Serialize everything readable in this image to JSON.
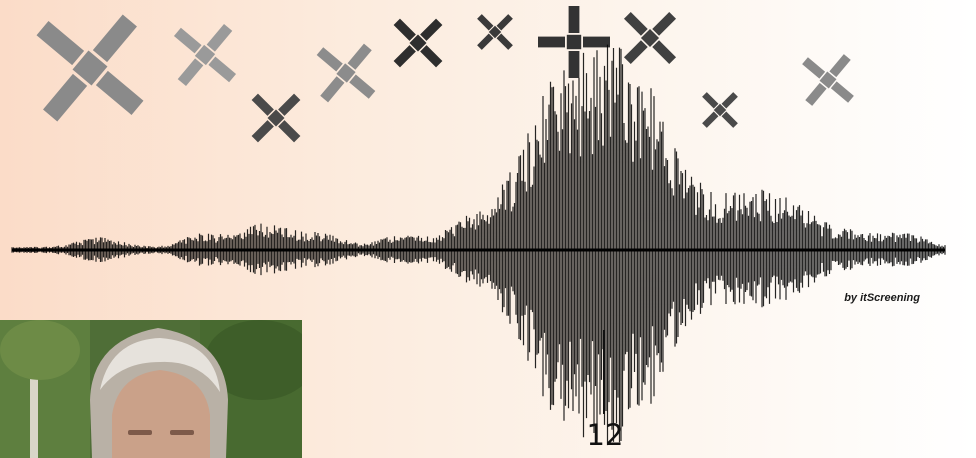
{
  "credit": {
    "text": "by itScreening"
  },
  "marker": {
    "label": "12"
  },
  "satellites": [
    {
      "icon": "satellite-icon",
      "tone": "#8a8a8a"
    },
    {
      "icon": "satellite-icon",
      "tone": "#9a9a9a"
    },
    {
      "icon": "satellite-icon",
      "tone": "#4a4a4a"
    },
    {
      "icon": "satellite-icon",
      "tone": "#8c8c8c"
    },
    {
      "icon": "satellite-icon",
      "tone": "#2e2e2e"
    },
    {
      "icon": "satellite-icon",
      "tone": "#3a3a3a"
    },
    {
      "icon": "satellite-icon",
      "tone": "#333333"
    },
    {
      "icon": "satellite-icon",
      "tone": "#404040"
    },
    {
      "icon": "satellite-icon",
      "tone": "#4a4a4a"
    },
    {
      "icon": "satellite-icon",
      "tone": "#8a8a8a"
    }
  ],
  "photo": {
    "icon": "person-photo",
    "description_visible": false
  },
  "colors": {
    "waveform": "#000000",
    "background_left": "#fbdcc8",
    "background_right": "#ffffff"
  }
}
